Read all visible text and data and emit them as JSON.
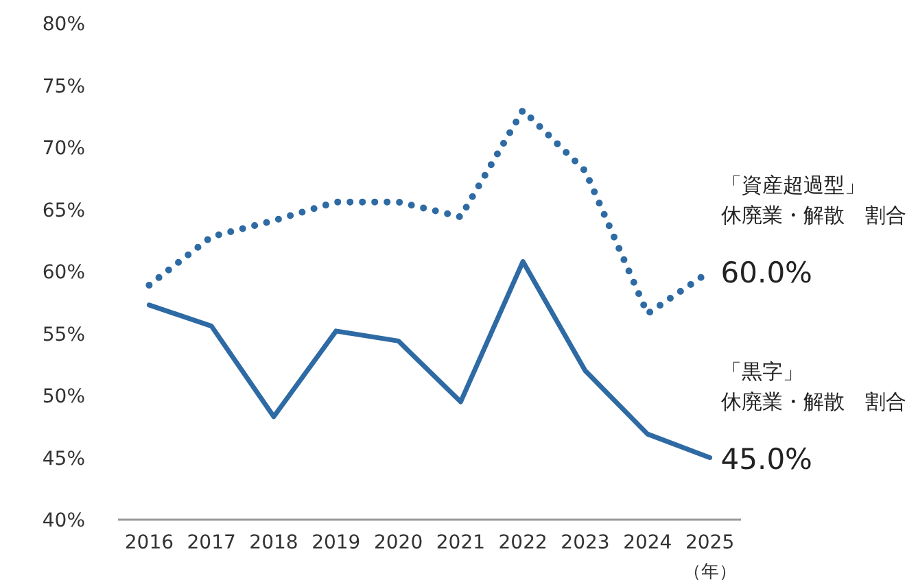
{
  "chart_data": {
    "type": "line",
    "categories": [
      "2016",
      "2017",
      "2018",
      "2019",
      "2020",
      "2021",
      "2022",
      "2023",
      "2024",
      "2025"
    ],
    "xlabel": "（年）",
    "ylim": [
      40,
      80
    ],
    "yticks": [
      {
        "value": 40,
        "label": "40%"
      },
      {
        "value": 45,
        "label": "45%"
      },
      {
        "value": 50,
        "label": "50%"
      },
      {
        "value": 55,
        "label": "55%"
      },
      {
        "value": 60,
        "label": "60%"
      },
      {
        "value": 65,
        "label": "65%"
      },
      {
        "value": 70,
        "label": "70%"
      },
      {
        "value": 75,
        "label": "75%"
      },
      {
        "value": 80,
        "label": "80%"
      }
    ],
    "grid": false,
    "legend": false,
    "series": [
      {
        "name": "「資産超過型」休廃業・解散　割合",
        "color": "#2e6aa3",
        "line_style": "dotted",
        "values": [
          58.9,
          62.8,
          64.1,
          65.6,
          65.6,
          64.4,
          73.0,
          68.1,
          56.6,
          60.0
        ],
        "value_labels": [
          null,
          null,
          null,
          null,
          null,
          null,
          null,
          null,
          null,
          "60.0%"
        ]
      },
      {
        "name": "「黒字」休廃業・解散　割合",
        "color": "#2e6aa3",
        "line_style": "solid",
        "values": [
          57.3,
          55.6,
          48.3,
          55.2,
          54.4,
          49.5,
          60.8,
          52.0,
          46.9,
          45.0
        ],
        "value_labels": [
          null,
          null,
          null,
          null,
          null,
          null,
          null,
          null,
          null,
          "45.0%"
        ]
      }
    ]
  }
}
